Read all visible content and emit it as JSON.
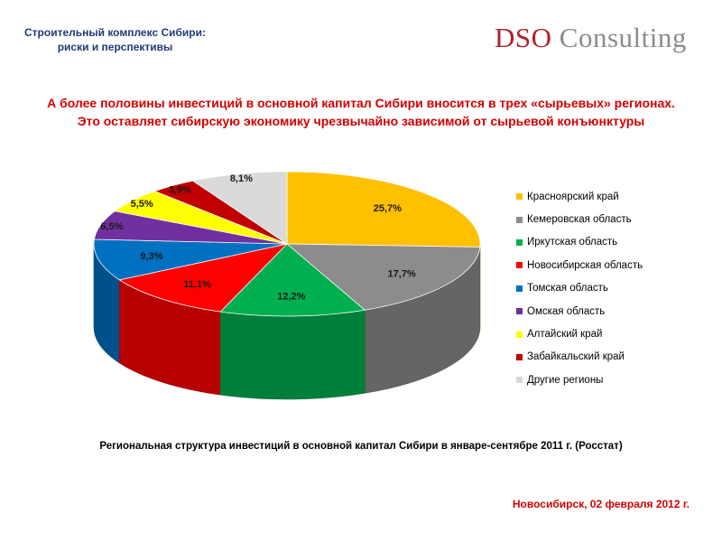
{
  "header": {
    "line1": "Строительный комплекс Сибири:",
    "line2": "риски и перспективы"
  },
  "logo": {
    "part1": "DSO",
    "part2": " Consulting"
  },
  "headline": {
    "line1": "А более половины инвестиций в основной капитал Сибири вносится в трех «сырьевых» регионах.",
    "line2": "Это оставляет сибирскую экономику чрезвычайно зависимой от сырьевой конъюнктуры"
  },
  "chart_data": {
    "type": "pie",
    "title": "",
    "categories": [
      "Красноярский край",
      "Кемеровская область",
      "Иркутская область",
      "Новосибирская область",
      "Томская область",
      "Омская область",
      "Алтайский край",
      "Забайкальский край",
      "Другие регионы"
    ],
    "values": [
      25.7,
      17.7,
      12.2,
      11.1,
      9.3,
      6.5,
      5.5,
      3.9,
      8.1
    ],
    "labels": [
      "25,7%",
      "17,7%",
      "12,2%",
      "11,1%",
      "9,3%",
      "6,5%",
      "5,5%",
      "3,9%",
      "8,1%"
    ],
    "colors": [
      "#ffc000",
      "#8c8c8c",
      "#00b050",
      "#ff0000",
      "#0070c0",
      "#7030a0",
      "#ffff00",
      "#c00000",
      "#d9d9d9"
    ],
    "style": "3d",
    "legend_position": "right"
  },
  "caption": "Региональная структура инвестиций в основной капитал Сибири в январе-сентябре 2011 г. (Росстат)",
  "date": "Новосибирск, 02 февраля 2012 г."
}
